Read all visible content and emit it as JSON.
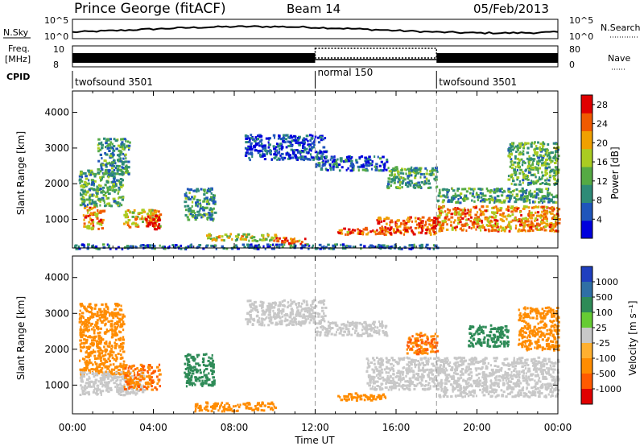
{
  "header": {
    "station": "Prince George (fitACF)",
    "beam": "Beam 14",
    "date": "05/Feb/2013"
  },
  "top_panels": {
    "nsky_label": "N.Sky",
    "nsky_ticks": [
      "10^5",
      "10^0"
    ],
    "nsearch_label": "N.Search",
    "nsearch_ticks": [
      "10^5",
      "10^0"
    ],
    "freq_label_1": "Freq.",
    "freq_label_2": "[MHz]",
    "freq_ticks": [
      "10",
      "8"
    ],
    "nave_label": "Nave",
    "nave_ticks": [
      "80",
      "0"
    ],
    "cpid_label": "CPID",
    "modes": [
      {
        "name": "twofsound 3501",
        "start": 0,
        "end": 12
      },
      {
        "name": "normal 150",
        "start": 12,
        "end": 18
      },
      {
        "name": "twofsound 3501",
        "start": 18,
        "end": 24
      }
    ]
  },
  "colors": {
    "power": [
      "#0000dd",
      "#1f55bb",
      "#2e8b77",
      "#55aa44",
      "#aacc22",
      "#f0a000",
      "#f05a00",
      "#e00000"
    ],
    "velocity": [
      "#1f3fbf",
      "#2f6fa5",
      "#2e8b57",
      "#66cc33",
      "#c8c8c8",
      "#ffb030",
      "#ff8c00",
      "#ff5a00",
      "#e00000"
    ]
  },
  "chart_data": [
    {
      "type": "heatmap",
      "name": "power",
      "xlabel": "Time UT",
      "ylabel": "Slant Range [km]",
      "x_unit": "hours UT",
      "xlim": [
        0,
        24
      ],
      "ylim": [
        200,
        4600
      ],
      "y_ticks": [
        "1000",
        "2000",
        "3000",
        "4000"
      ],
      "x_ticks": [
        "00:00",
        "04:00",
        "08:00",
        "12:00",
        "16:00",
        "20:00",
        "00:00"
      ],
      "colorbar_label": "Power [dB]",
      "colorbar_ticks": [
        "4",
        "8",
        "12",
        "16",
        "20",
        "24",
        "28"
      ],
      "colorbar_range": [
        0,
        30
      ],
      "regions": [
        {
          "t0": 0.5,
          "t1": 1.5,
          "r0": 750,
          "r1": 1400,
          "value": 22
        },
        {
          "t0": 0.3,
          "t1": 2.5,
          "r0": 1400,
          "r1": 2400,
          "value": 12
        },
        {
          "t0": 1.2,
          "t1": 2.8,
          "r0": 2300,
          "r1": 3300,
          "value": 10
        },
        {
          "t0": 2.5,
          "t1": 4.3,
          "r0": 800,
          "r1": 1300,
          "value": 20
        },
        {
          "t0": 3.5,
          "t1": 4.3,
          "r0": 750,
          "r1": 1150,
          "value": 28
        },
        {
          "t0": 5.5,
          "t1": 7.0,
          "r0": 1000,
          "r1": 1900,
          "value": 10
        },
        {
          "t0": 6.5,
          "t1": 10.0,
          "r0": 420,
          "r1": 620,
          "value": 17
        },
        {
          "t0": 10.0,
          "t1": 11.5,
          "r0": 320,
          "r1": 520,
          "value": 23
        },
        {
          "t0": 8.5,
          "t1": 12.5,
          "r0": 2700,
          "r1": 3400,
          "value": 5
        },
        {
          "t0": 12.0,
          "t1": 15.5,
          "r0": 2400,
          "r1": 2800,
          "value": 6
        },
        {
          "t0": 13.0,
          "t1": 15.5,
          "r0": 600,
          "r1": 800,
          "value": 24
        },
        {
          "t0": 15.0,
          "t1": 18.0,
          "r0": 600,
          "r1": 1100,
          "value": 25
        },
        {
          "t0": 15.5,
          "t1": 18.0,
          "r0": 1900,
          "r1": 2500,
          "value": 12
        },
        {
          "t0": 18.0,
          "t1": 24.0,
          "r0": 700,
          "r1": 1400,
          "value": 22
        },
        {
          "t0": 18.0,
          "t1": 24.0,
          "r0": 1500,
          "r1": 1900,
          "value": 11
        },
        {
          "t0": 21.5,
          "t1": 24.0,
          "r0": 2000,
          "r1": 3200,
          "value": 13
        },
        {
          "t0": 0.0,
          "t1": 18.0,
          "r0": 200,
          "r1": 330,
          "value": 7
        }
      ]
    },
    {
      "type": "heatmap",
      "name": "velocity",
      "xlabel": "Time UT",
      "ylabel": "Slant Range [km]",
      "x_unit": "hours UT",
      "xlim": [
        0,
        24
      ],
      "ylim": [
        200,
        4600
      ],
      "y_ticks": [
        "1000",
        "2000",
        "3000",
        "4000"
      ],
      "x_ticks": [
        "00:00",
        "04:00",
        "08:00",
        "12:00",
        "16:00",
        "20:00",
        "00:00"
      ],
      "colorbar_label": "Velocity [m s⁻¹]",
      "colorbar_ticks": [
        "1000",
        "500",
        "100",
        "25",
        "-25",
        "-100",
        "-500",
        "-1000"
      ],
      "regions": [
        {
          "t0": 0.3,
          "t1": 2.5,
          "r0": 1300,
          "r1": 3300,
          "value": -300
        },
        {
          "t0": 0.3,
          "t1": 3.5,
          "r0": 750,
          "r1": 1400,
          "value": 0
        },
        {
          "t0": 2.5,
          "t1": 4.3,
          "r0": 900,
          "r1": 1600,
          "value": -400
        },
        {
          "t0": 5.5,
          "t1": 7.0,
          "r0": 1000,
          "r1": 1900,
          "value": 150
        },
        {
          "t0": 6.0,
          "t1": 10.0,
          "r0": 300,
          "r1": 550,
          "value": -200
        },
        {
          "t0": 8.5,
          "t1": 12.5,
          "r0": 2700,
          "r1": 3400,
          "value": 0
        },
        {
          "t0": 12.0,
          "t1": 15.5,
          "r0": 2400,
          "r1": 2800,
          "value": 0
        },
        {
          "t0": 14.5,
          "t1": 18.0,
          "r0": 900,
          "r1": 1800,
          "value": 0
        },
        {
          "t0": 13.0,
          "t1": 15.5,
          "r0": 600,
          "r1": 800,
          "value": -150
        },
        {
          "t0": 16.5,
          "t1": 18.0,
          "r0": 1900,
          "r1": 2500,
          "value": -400
        },
        {
          "t0": 18.0,
          "t1": 24.0,
          "r0": 700,
          "r1": 1800,
          "value": 0
        },
        {
          "t0": 19.5,
          "t1": 21.5,
          "r0": 2100,
          "r1": 2700,
          "value": 150
        },
        {
          "t0": 22.0,
          "t1": 24.0,
          "r0": 2000,
          "r1": 3200,
          "value": -200
        }
      ]
    }
  ]
}
